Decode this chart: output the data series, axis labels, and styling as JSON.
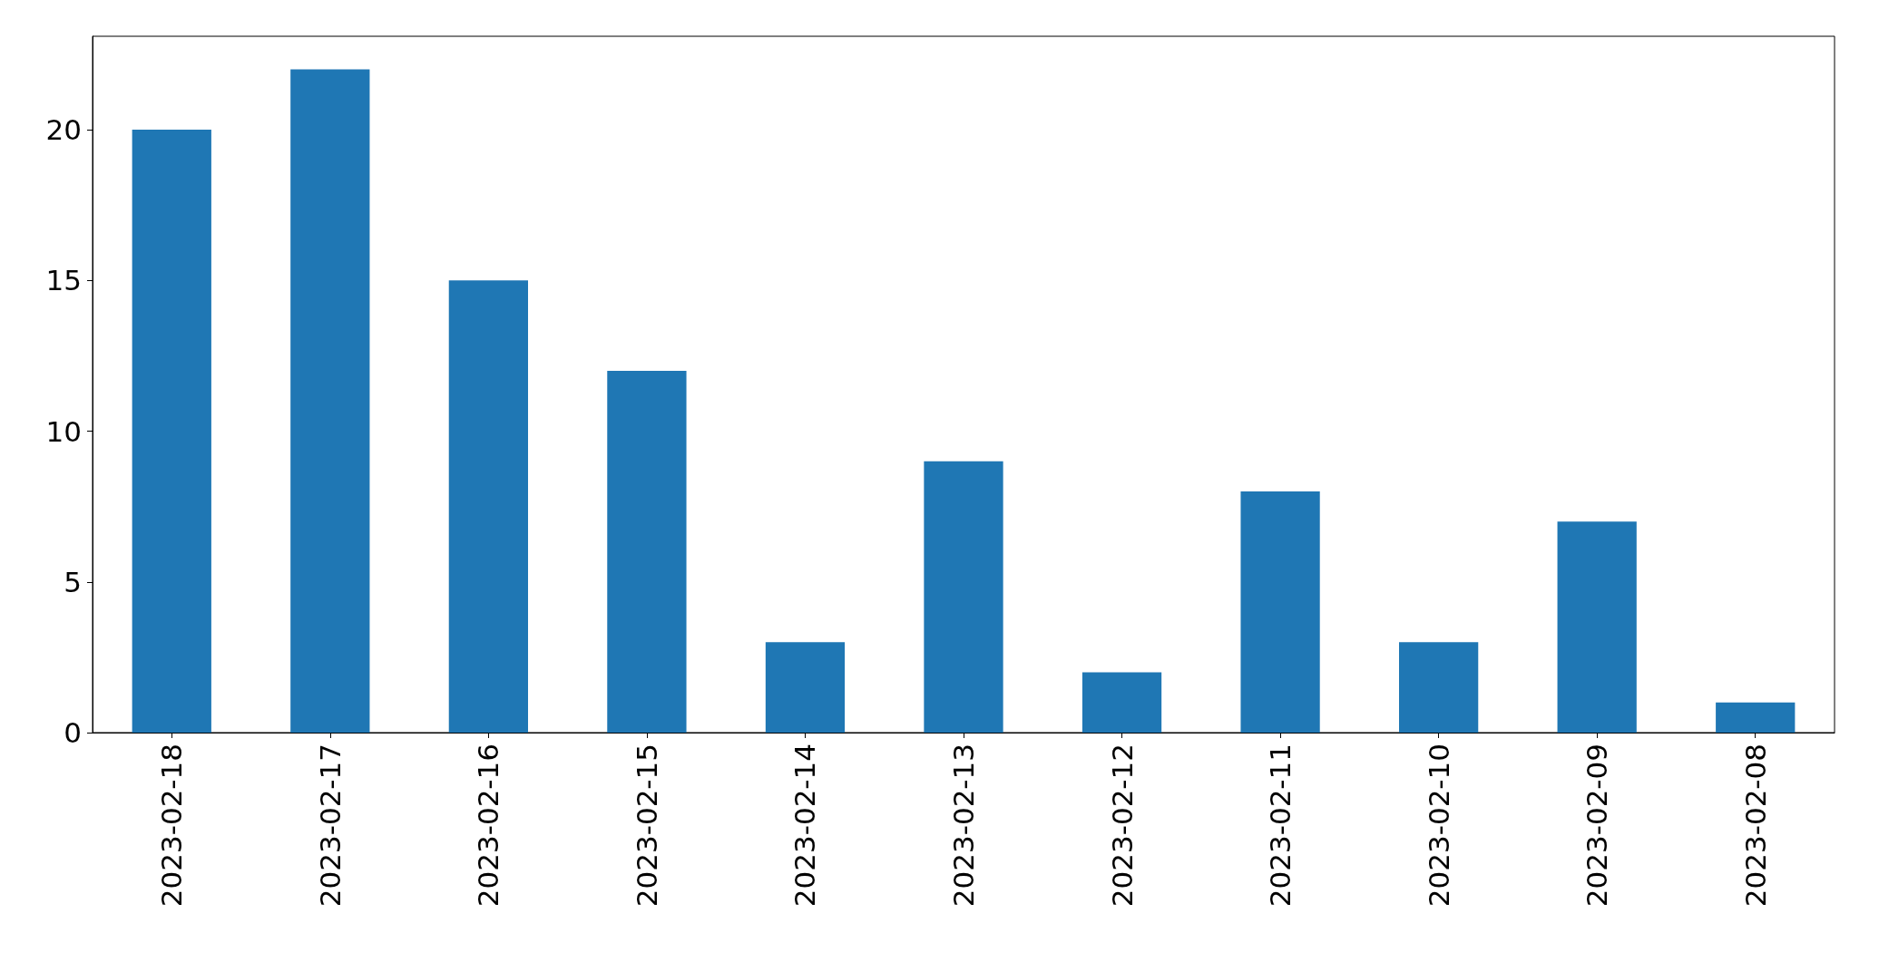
{
  "chart_data": {
    "type": "bar",
    "categories": [
      "2023-02-18",
      "2023-02-17",
      "2023-02-16",
      "2023-02-15",
      "2023-02-14",
      "2023-02-13",
      "2023-02-12",
      "2023-02-11",
      "2023-02-10",
      "2023-02-09",
      "2023-02-08"
    ],
    "values": [
      20,
      22,
      15,
      12,
      3,
      9,
      2,
      8,
      3,
      7,
      1
    ],
    "color": "#1f77b4",
    "ylim": [
      0,
      23.1
    ],
    "yticks": [
      0,
      5,
      10,
      15,
      20
    ]
  }
}
